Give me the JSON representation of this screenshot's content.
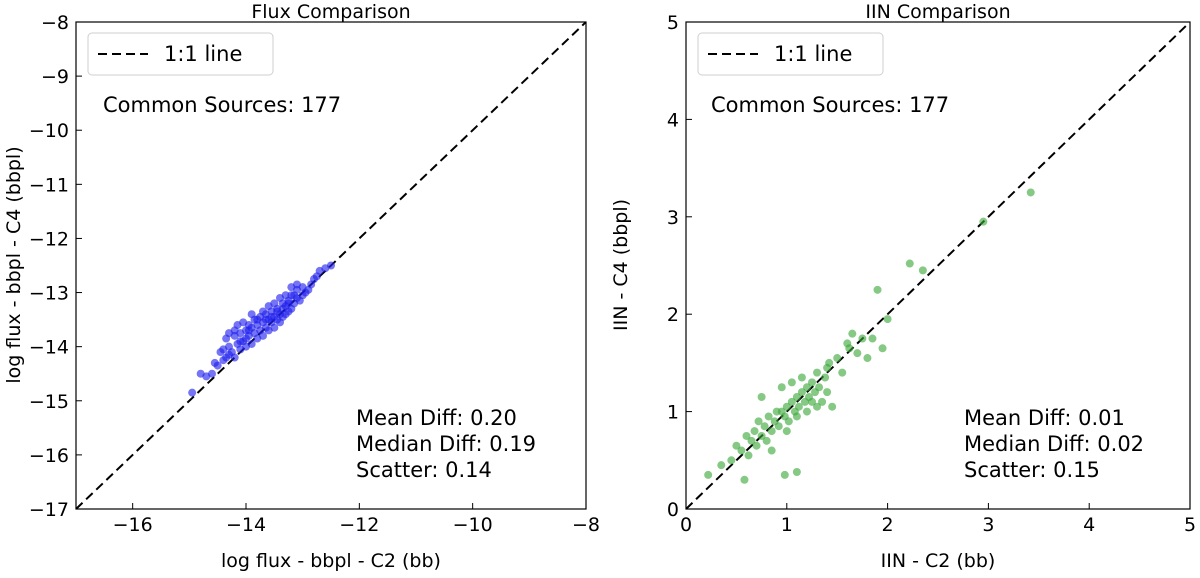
{
  "chart_data": [
    {
      "type": "scatter",
      "title": "Flux Comparison",
      "xlabel": "log flux - bbpl - C2 (bb)",
      "ylabel": "log flux - bbpl - C4 (bbpl)",
      "xlim": [
        -17,
        -8
      ],
      "ylim": [
        -17,
        -8
      ],
      "xticks": [
        -16,
        -14,
        -12,
        -10,
        -8
      ],
      "yticks": [
        -17,
        -16,
        -15,
        -14,
        -13,
        -12,
        -11,
        -10,
        -9,
        -8
      ],
      "xtick_labels": [
        "−16",
        "−14",
        "−12",
        "−10",
        "−8"
      ],
      "ytick_labels": [
        "−17",
        "−16",
        "−15",
        "−14",
        "−13",
        "−12",
        "−11",
        "−10",
        "−9",
        "−8"
      ],
      "legend": {
        "label": "1:1 line",
        "placement": "top-left"
      },
      "annotation_top": "Common Sources: 177",
      "stats": [
        "Mean Diff: 0.20",
        "Median Diff: 0.19",
        "Scatter: 0.14"
      ],
      "series": [
        {
          "name": "sources",
          "color": "#1f1fee",
          "points": [
            [
              -14.95,
              -14.85
            ],
            [
              -14.8,
              -14.5
            ],
            [
              -14.7,
              -14.55
            ],
            [
              -14.6,
              -14.5
            ],
            [
              -14.55,
              -14.3
            ],
            [
              -14.5,
              -14.35
            ],
            [
              -14.45,
              -14.1
            ],
            [
              -14.4,
              -14.05
            ],
            [
              -14.4,
              -14.25
            ],
            [
              -14.35,
              -14.2
            ],
            [
              -14.35,
              -13.85
            ],
            [
              -14.3,
              -14.0
            ],
            [
              -14.3,
              -13.75
            ],
            [
              -14.25,
              -14.1
            ],
            [
              -14.2,
              -14.2
            ],
            [
              -14.2,
              -13.8
            ],
            [
              -14.15,
              -13.95
            ],
            [
              -14.15,
              -13.6
            ],
            [
              -14.1,
              -14.05
            ],
            [
              -14.1,
              -13.75
            ],
            [
              -14.05,
              -13.9
            ],
            [
              -14.05,
              -13.55
            ],
            [
              -14.0,
              -14.0
            ],
            [
              -14.0,
              -13.7
            ],
            [
              -13.95,
              -13.8
            ],
            [
              -13.95,
              -13.6
            ],
            [
              -13.9,
              -13.95
            ],
            [
              -13.9,
              -13.65
            ],
            [
              -13.85,
              -13.75
            ],
            [
              -13.85,
              -13.5
            ],
            [
              -13.8,
              -13.85
            ],
            [
              -13.8,
              -13.6
            ],
            [
              -13.75,
              -13.7
            ],
            [
              -13.75,
              -13.45
            ],
            [
              -13.7,
              -13.8
            ],
            [
              -13.7,
              -13.55
            ],
            [
              -13.65,
              -13.65
            ],
            [
              -13.65,
              -13.4
            ],
            [
              -13.6,
              -13.7
            ],
            [
              -13.6,
              -13.5
            ],
            [
              -13.55,
              -13.55
            ],
            [
              -13.55,
              -13.35
            ],
            [
              -13.5,
              -13.65
            ],
            [
              -13.5,
              -13.45
            ],
            [
              -13.45,
              -13.5
            ],
            [
              -13.45,
              -13.3
            ],
            [
              -13.4,
              -13.55
            ],
            [
              -13.4,
              -13.4
            ],
            [
              -13.35,
              -13.45
            ],
            [
              -13.35,
              -13.2
            ],
            [
              -13.3,
              -13.4
            ],
            [
              -13.3,
              -13.25
            ],
            [
              -13.25,
              -13.35
            ],
            [
              -13.25,
              -13.15
            ],
            [
              -13.2,
              -13.3
            ],
            [
              -13.2,
              -13.05
            ],
            [
              -13.15,
              -13.2
            ],
            [
              -13.1,
              -13.1
            ],
            [
              -13.1,
              -12.95
            ],
            [
              -13.05,
              -13.15
            ],
            [
              -13.0,
              -13.05
            ],
            [
              -13.0,
              -12.9
            ],
            [
              -12.95,
              -13.0
            ],
            [
              -12.9,
              -12.95
            ],
            [
              -12.85,
              -12.85
            ],
            [
              -12.8,
              -12.75
            ],
            [
              -12.75,
              -12.7
            ],
            [
              -12.7,
              -12.6
            ],
            [
              -12.6,
              -12.55
            ],
            [
              -12.5,
              -12.5
            ],
            [
              -14.2,
              -13.7
            ],
            [
              -14.0,
              -13.85
            ],
            [
              -13.9,
              -13.4
            ],
            [
              -13.7,
              -13.35
            ],
            [
              -13.6,
              -13.25
            ],
            [
              -13.5,
              -13.2
            ],
            [
              -13.4,
              -13.1
            ],
            [
              -13.3,
              -13.05
            ],
            [
              -13.2,
              -12.9
            ],
            [
              -13.1,
              -12.85
            ],
            [
              -14.3,
              -14.15
            ],
            [
              -14.1,
              -13.9
            ],
            [
              -13.95,
              -13.7
            ],
            [
              -13.8,
              -13.5
            ],
            [
              -13.65,
              -13.5
            ],
            [
              -13.55,
              -13.45
            ],
            [
              -13.45,
              -13.35
            ],
            [
              -13.35,
              -13.3
            ],
            [
              -13.25,
              -13.2
            ],
            [
              -13.15,
              -13.05
            ]
          ]
        }
      ]
    },
    {
      "type": "scatter",
      "title": "IIN Comparison",
      "xlabel": "IIN - C2 (bb)",
      "ylabel": "IIN - C4 (bbpl)",
      "xlim": [
        0,
        5
      ],
      "ylim": [
        0,
        5
      ],
      "xticks": [
        0,
        1,
        2,
        3,
        4,
        5
      ],
      "yticks": [
        0,
        1,
        2,
        3,
        4,
        5
      ],
      "xtick_labels": [
        "0",
        "1",
        "2",
        "3",
        "4",
        "5"
      ],
      "ytick_labels": [
        "0",
        "1",
        "2",
        "3",
        "4",
        "5"
      ],
      "legend": {
        "label": "1:1 line",
        "placement": "top-left"
      },
      "annotation_top": "Common Sources: 177",
      "stats": [
        "Mean Diff: 0.01",
        "Median Diff: 0.02",
        "Scatter: 0.15"
      ],
      "series": [
        {
          "name": "sources",
          "color": "#3aa83a",
          "points": [
            [
              0.22,
              0.35
            ],
            [
              0.35,
              0.45
            ],
            [
              0.45,
              0.5
            ],
            [
              0.5,
              0.65
            ],
            [
              0.55,
              0.6
            ],
            [
              0.58,
              0.3
            ],
            [
              0.6,
              0.75
            ],
            [
              0.65,
              0.7
            ],
            [
              0.68,
              0.8
            ],
            [
              0.7,
              0.65
            ],
            [
              0.72,
              0.9
            ],
            [
              0.75,
              0.75
            ],
            [
              0.78,
              0.85
            ],
            [
              0.8,
              0.7
            ],
            [
              0.82,
              0.95
            ],
            [
              0.85,
              0.8
            ],
            [
              0.88,
              0.9
            ],
            [
              0.9,
              1.0
            ],
            [
              0.92,
              0.85
            ],
            [
              0.95,
              1.0
            ],
            [
              0.98,
              0.95
            ],
            [
              1.0,
              1.05
            ],
            [
              1.02,
              0.9
            ],
            [
              1.05,
              1.1
            ],
            [
              1.08,
              1.0
            ],
            [
              1.1,
              1.15
            ],
            [
              1.12,
              1.05
            ],
            [
              1.15,
              1.2
            ],
            [
              1.18,
              1.1
            ],
            [
              1.2,
              1.25
            ],
            [
              1.22,
              1.15
            ],
            [
              1.25,
              1.3
            ],
            [
              1.28,
              1.2
            ],
            [
              1.3,
              1.4
            ],
            [
              1.32,
              1.25
            ],
            [
              1.35,
              1.1
            ],
            [
              1.38,
              1.35
            ],
            [
              1.4,
              1.2
            ],
            [
              1.42,
              1.5
            ],
            [
              1.45,
              1.05
            ],
            [
              1.5,
              1.55
            ],
            [
              1.55,
              1.4
            ],
            [
              1.6,
              1.7
            ],
            [
              1.62,
              1.65
            ],
            [
              1.65,
              1.8
            ],
            [
              1.7,
              1.6
            ],
            [
              1.75,
              1.75
            ],
            [
              1.8,
              1.55
            ],
            [
              1.85,
              1.75
            ],
            [
              1.9,
              2.25
            ],
            [
              1.95,
              1.65
            ],
            [
              2.0,
              1.95
            ],
            [
              2.22,
              2.52
            ],
            [
              2.35,
              2.45
            ],
            [
              2.95,
              2.95
            ],
            [
              3.42,
              3.25
            ],
            [
              1.1,
              0.38
            ],
            [
              0.98,
              0.35
            ],
            [
              0.75,
              1.15
            ],
            [
              0.95,
              1.25
            ],
            [
              1.05,
              1.3
            ],
            [
              1.15,
              1.35
            ],
            [
              1.25,
              1.1
            ],
            [
              0.85,
              0.6
            ],
            [
              0.62,
              0.55
            ],
            [
              1.0,
              0.8
            ],
            [
              1.2,
              1.0
            ],
            [
              1.4,
              1.45
            ],
            [
              1.3,
              1.05
            ],
            [
              1.1,
              0.95
            ]
          ]
        }
      ]
    }
  ]
}
